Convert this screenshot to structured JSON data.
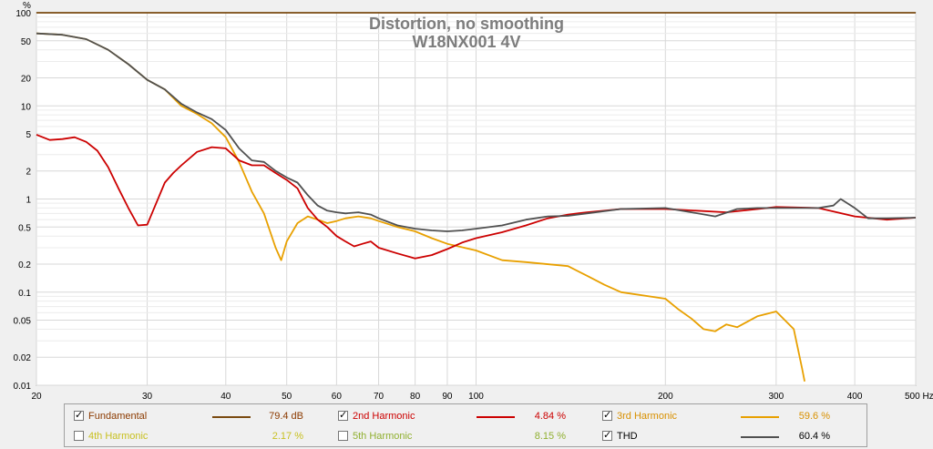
{
  "chart_data": {
    "type": "line",
    "title": "Distortion, no smoothing",
    "subtitle": "W18NX001 4V",
    "y_unit": "%",
    "x_unit": "Hz",
    "x_scale": "log",
    "y_scale": "log",
    "xlim": [
      20,
      500
    ],
    "ylim": [
      0.01,
      100
    ],
    "grid": true,
    "x_ticks": [
      "20",
      "30",
      "40",
      "50",
      "60",
      "70",
      "80",
      "90",
      "100",
      "200",
      "300",
      "400",
      "500 Hz"
    ],
    "x_tick_values": [
      20,
      30,
      40,
      50,
      60,
      70,
      80,
      90,
      100,
      200,
      300,
      400,
      500
    ],
    "y_ticks": [
      "100",
      "50",
      "20",
      "10",
      "5",
      "2",
      "1",
      "0.5",
      "0.2",
      "0.1",
      "0.05",
      "0.02",
      "0.01"
    ],
    "y_tick_values": [
      100,
      50,
      20,
      10,
      5,
      2,
      1,
      0.5,
      0.2,
      0.1,
      0.05,
      0.02,
      0.01
    ],
    "series": [
      {
        "name": "Fundamental",
        "color": "#7a4a10",
        "visible": true,
        "x": [
          20,
          500
        ],
        "y": [
          100,
          100
        ]
      },
      {
        "name": "2nd Harmonic",
        "color": "#cc0000",
        "visible": true,
        "x": [
          20,
          21,
          22,
          23,
          24,
          25,
          26,
          27,
          28,
          29,
          30,
          31,
          32,
          33,
          34,
          36,
          38,
          40,
          42,
          44,
          46,
          48,
          50,
          52,
          54,
          56,
          58,
          60,
          62,
          64,
          66,
          68,
          70,
          75,
          80,
          85,
          90,
          95,
          100,
          110,
          120,
          130,
          140,
          150,
          170,
          200,
          250,
          300,
          350,
          400,
          450,
          500
        ],
        "y": [
          4.9,
          4.3,
          4.4,
          4.6,
          4.1,
          3.3,
          2.2,
          1.3,
          0.8,
          0.52,
          0.53,
          0.9,
          1.5,
          1.9,
          2.3,
          3.2,
          3.6,
          3.5,
          2.6,
          2.3,
          2.3,
          1.9,
          1.6,
          1.3,
          0.8,
          0.6,
          0.5,
          0.4,
          0.35,
          0.31,
          0.33,
          0.35,
          0.3,
          0.26,
          0.23,
          0.25,
          0.29,
          0.34,
          0.38,
          0.44,
          0.52,
          0.62,
          0.68,
          0.72,
          0.78,
          0.78,
          0.72,
          0.82,
          0.8,
          0.65,
          0.6,
          0.63
        ]
      },
      {
        "name": "3rd Harmonic",
        "color": "#e8a000",
        "visible": true,
        "x": [
          20,
          22,
          24,
          26,
          28,
          30,
          32,
          34,
          36,
          38,
          40,
          42,
          44,
          46,
          48,
          49,
          50,
          52,
          54,
          56,
          58,
          60,
          62,
          65,
          68,
          70,
          75,
          80,
          85,
          90,
          100,
          110,
          120,
          140,
          150,
          160,
          170,
          200,
          210,
          220,
          230,
          240,
          250,
          260,
          280,
          300,
          320,
          330,
          333
        ],
        "y": [
          60,
          58,
          52,
          40,
          28,
          19,
          15,
          10,
          8.2,
          6.5,
          4.6,
          2.5,
          1.2,
          0.7,
          0.3,
          0.22,
          0.35,
          0.55,
          0.65,
          0.6,
          0.55,
          0.58,
          0.62,
          0.65,
          0.62,
          0.58,
          0.5,
          0.45,
          0.38,
          0.33,
          0.28,
          0.22,
          0.21,
          0.19,
          0.15,
          0.12,
          0.1,
          0.085,
          0.065,
          0.052,
          0.04,
          0.038,
          0.045,
          0.042,
          0.055,
          0.062,
          0.04,
          0.015,
          0.011
        ]
      },
      {
        "name": "4th Harmonic",
        "color": "#c0d030",
        "visible": false,
        "x": [],
        "y": []
      },
      {
        "name": "5th Harmonic",
        "color": "#a0c040",
        "visible": false,
        "x": [],
        "y": []
      },
      {
        "name": "THD",
        "color": "#505050",
        "visible": true,
        "x": [
          20,
          22,
          24,
          26,
          28,
          30,
          32,
          34,
          36,
          38,
          40,
          42,
          44,
          46,
          48,
          50,
          52,
          54,
          56,
          58,
          60,
          62,
          65,
          68,
          70,
          75,
          80,
          85,
          90,
          95,
          100,
          110,
          120,
          130,
          140,
          150,
          170,
          200,
          220,
          240,
          260,
          280,
          300,
          330,
          350,
          370,
          380,
          400,
          420,
          450,
          500
        ],
        "y": [
          60,
          58,
          52,
          40,
          28,
          19,
          15,
          10.5,
          8.5,
          7.2,
          5.5,
          3.5,
          2.6,
          2.5,
          2.0,
          1.7,
          1.5,
          1.1,
          0.85,
          0.75,
          0.72,
          0.7,
          0.72,
          0.68,
          0.62,
          0.52,
          0.48,
          0.46,
          0.45,
          0.46,
          0.48,
          0.52,
          0.6,
          0.65,
          0.66,
          0.7,
          0.78,
          0.8,
          0.72,
          0.65,
          0.78,
          0.8,
          0.8,
          0.8,
          0.8,
          0.85,
          1.0,
          0.8,
          0.62,
          0.62,
          0.63
        ]
      }
    ]
  },
  "legend": {
    "items": [
      {
        "label": "Fundamental",
        "value": "79.4 dB",
        "checked": true,
        "color": "#7a4a10",
        "text_color": "#8b3a00"
      },
      {
        "label": "2nd Harmonic",
        "value": "4.84 %",
        "checked": true,
        "color": "#cc0000",
        "text_color": "#cc0000"
      },
      {
        "label": "3rd Harmonic",
        "value": "59.6 %",
        "checked": true,
        "color": "#e8a000",
        "text_color": "#d89000"
      },
      {
        "label": "4th Harmonic",
        "value": "2.17 %",
        "checked": false,
        "color": "#c0d030",
        "text_color": "#c8c020"
      },
      {
        "label": "5th Harmonic",
        "value": "8.15 %",
        "checked": false,
        "color": "#a0c040",
        "text_color": "#90b030"
      },
      {
        "label": "THD",
        "value": "60.4 %",
        "checked": true,
        "color": "#505050",
        "text_color": "#000000"
      }
    ]
  }
}
